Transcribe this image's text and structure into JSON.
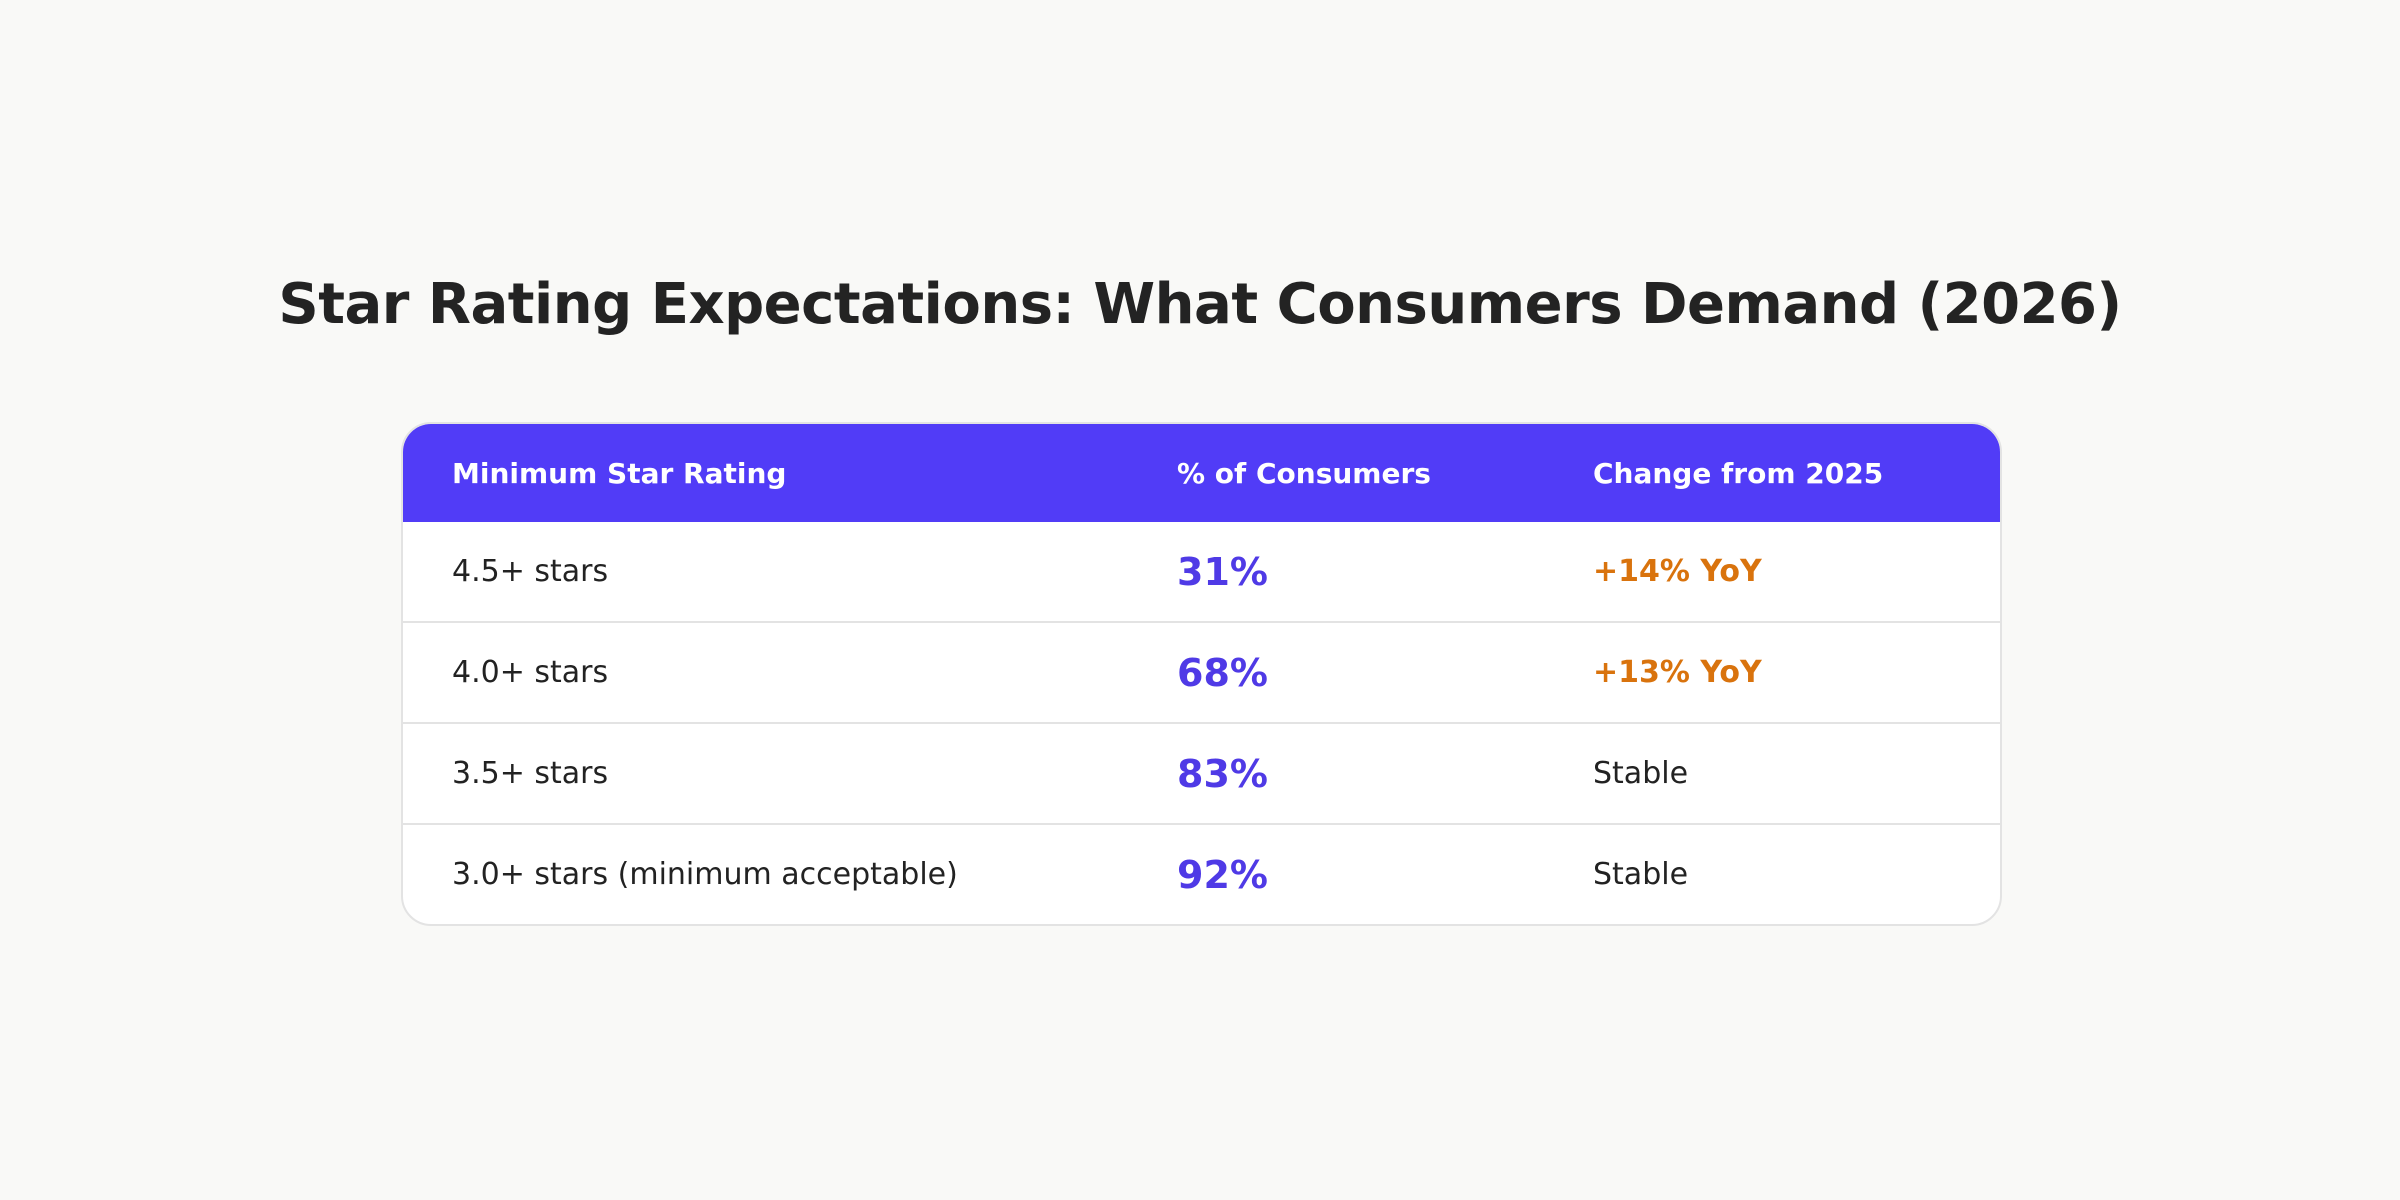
{
  "header": {
    "title": "Star Rating Expectations: What Consumers Demand (2026)"
  },
  "table": {
    "columns": [
      "Minimum Star Rating",
      "% of Consumers",
      "Change from 2025"
    ],
    "rows": [
      [
        "4.5+ stars",
        "31%",
        "+14% YoY"
      ],
      [
        "4.0+ stars",
        "68%",
        "+13% YoY"
      ],
      [
        "3.5+ stars",
        "83%",
        "Stable"
      ],
      [
        "3.0+ stars (minimum acceptable)",
        "92%",
        "Stable"
      ]
    ]
  }
}
